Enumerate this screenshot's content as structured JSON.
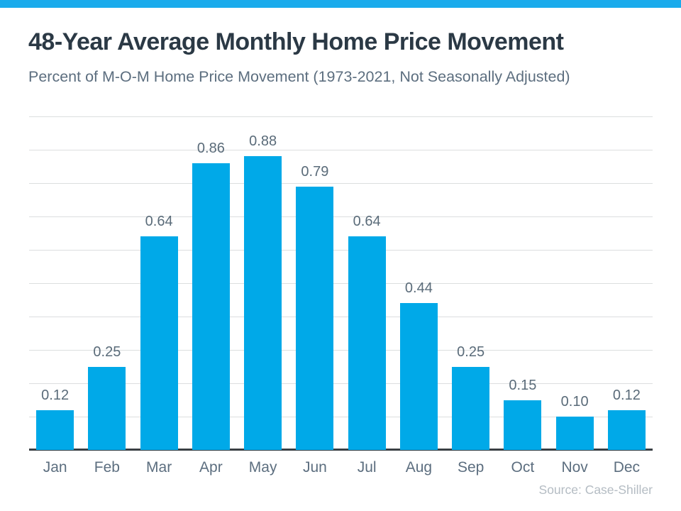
{
  "brand": {
    "top_bar_color": "#1AABEC"
  },
  "header": {
    "title": "48-Year Average Monthly Home Price Movement",
    "subtitle": "Percent of M-O-M Home Price Movement (1973-2021, Not Seasonally Adjusted)"
  },
  "chart_data": {
    "type": "bar",
    "title": "48-Year Average Monthly Home Price Movement",
    "subtitle": "Percent of M-O-M Home Price Movement (1973-2021, Not Seasonally Adjusted)",
    "categories": [
      "Jan",
      "Feb",
      "Mar",
      "Apr",
      "May",
      "Jun",
      "Jul",
      "Aug",
      "Sep",
      "Oct",
      "Nov",
      "Dec"
    ],
    "values": [
      0.12,
      0.25,
      0.64,
      0.86,
      0.88,
      0.79,
      0.64,
      0.44,
      0.25,
      0.15,
      0.1,
      0.12
    ],
    "value_labels": [
      "0.12",
      "0.25",
      "0.64",
      "0.86",
      "0.88",
      "0.79",
      "0.64",
      "0.44",
      "0.25",
      "0.15",
      "0.10",
      "0.12"
    ],
    "xlabel": "",
    "ylabel": "",
    "ylim": [
      0,
      1.0
    ],
    "gridline_step": 0.1,
    "grid": true,
    "legend_position": "none",
    "y_tick_labels_visible": false,
    "bar_color": "#00A9E8",
    "value_label_color": "#5A6B79",
    "month_label_color": "#5C6E7F",
    "gridline_color": "#DCDEDF",
    "axis_color": "#3A3F44"
  },
  "footer": {
    "source": "Source: Case-Shiller"
  }
}
